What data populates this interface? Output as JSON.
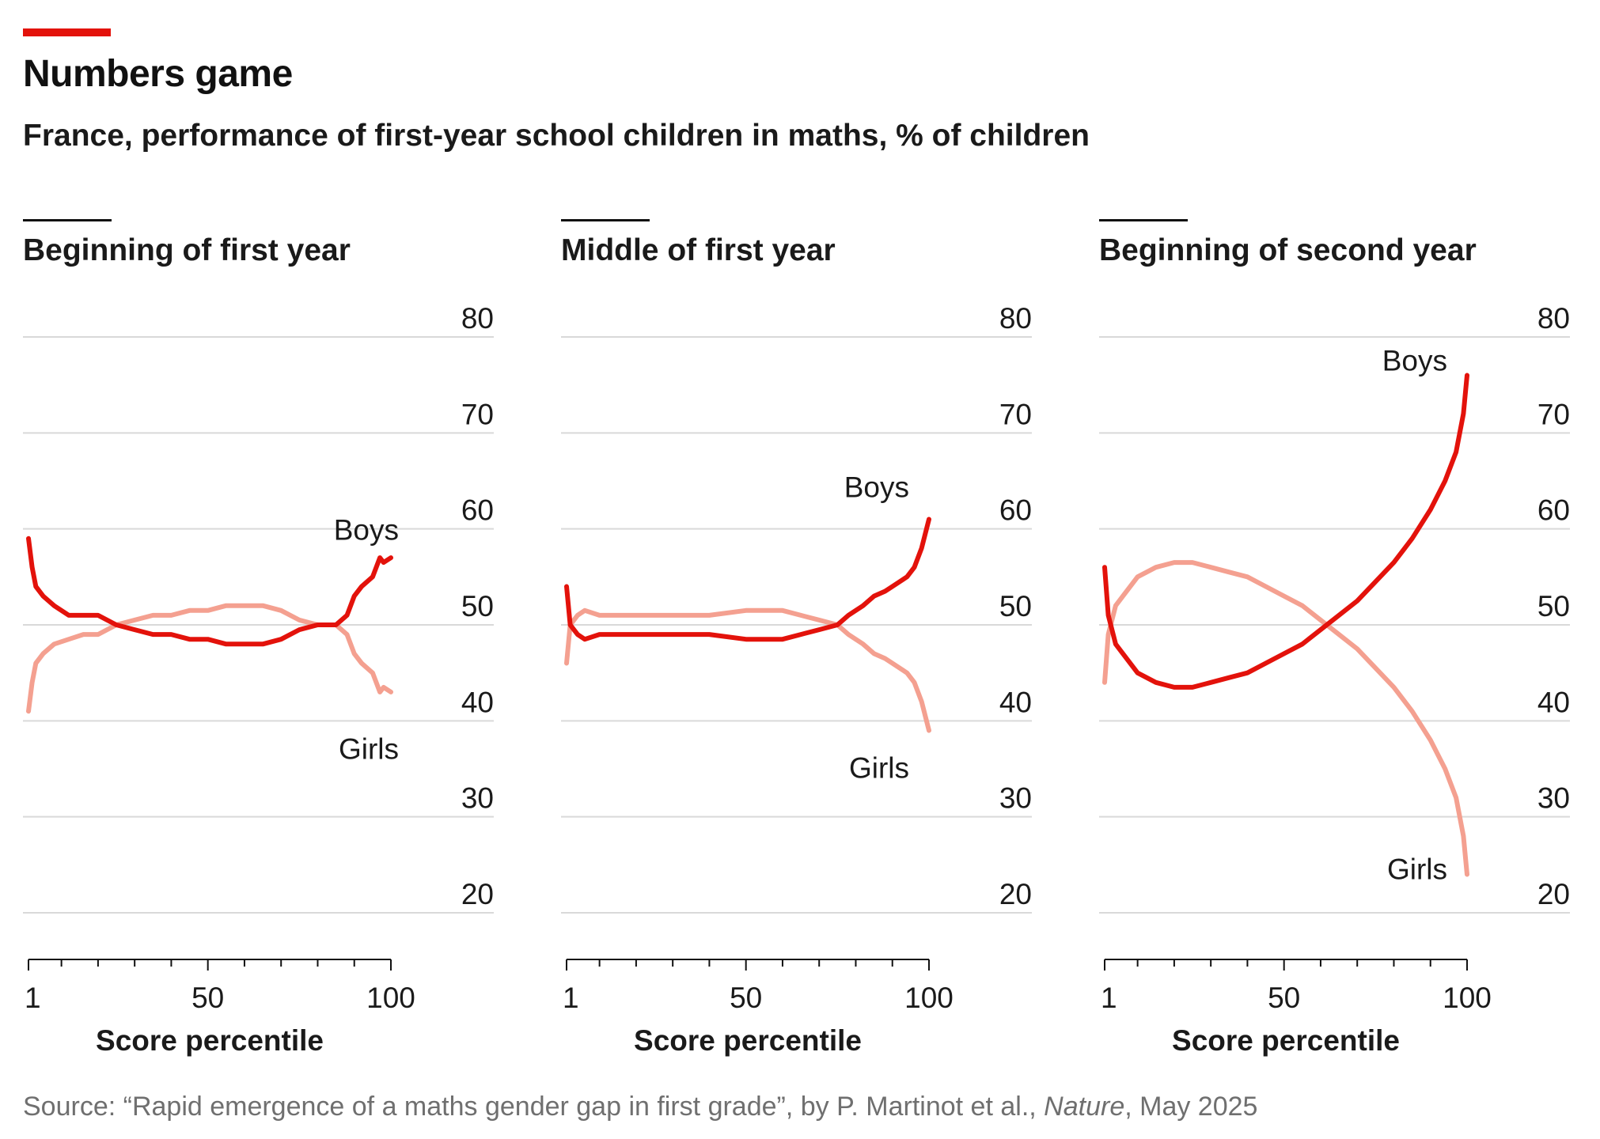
{
  "title": "Numbers game",
  "subtitle": "France, performance of first-year school children in maths, % of children",
  "source": {
    "prefix": "Source: “Rapid emergence of a maths gender gap in first grade”, by P. Martinot et al., ",
    "journal": "Nature",
    "suffix": ", May 2025"
  },
  "colors": {
    "accent": "#e3120b",
    "boys": "#e3120b",
    "girls": "#f4a090",
    "grid": "#d9d9d9"
  },
  "chart_data": [
    {
      "type": "line",
      "title": "Beginning of first year",
      "xlabel": "Score percentile",
      "xlim": [
        1,
        100
      ],
      "xticks": [
        1,
        50,
        100
      ],
      "ylim": [
        20,
        80
      ],
      "yticks": [
        20,
        30,
        40,
        50,
        60,
        70,
        80
      ],
      "series": [
        {
          "name": "Boys",
          "x": [
            1,
            2,
            3,
            5,
            8,
            12,
            16,
            20,
            25,
            30,
            35,
            40,
            45,
            50,
            55,
            60,
            65,
            70,
            75,
            80,
            85,
            88,
            90,
            92,
            95,
            97,
            98,
            100
          ],
          "values": [
            59,
            56,
            54,
            53,
            52,
            51,
            51,
            51,
            50,
            49.5,
            49,
            49,
            48.5,
            48.5,
            48,
            48,
            48,
            48.5,
            49.5,
            50,
            50,
            51,
            53,
            54,
            55,
            57,
            56.5,
            57
          ]
        },
        {
          "name": "Girls",
          "x": [
            1,
            2,
            3,
            5,
            8,
            12,
            16,
            20,
            25,
            30,
            35,
            40,
            45,
            50,
            55,
            60,
            65,
            70,
            75,
            80,
            85,
            88,
            90,
            92,
            95,
            97,
            98,
            100
          ],
          "values": [
            41,
            44,
            46,
            47,
            48,
            48.5,
            49,
            49,
            50,
            50.5,
            51,
            51,
            51.5,
            51.5,
            52,
            52,
            52,
            51.5,
            50.5,
            50,
            50,
            49,
            47,
            46,
            45,
            43,
            43.5,
            43
          ]
        }
      ]
    },
    {
      "type": "line",
      "title": "Middle of first year",
      "xlabel": "Score percentile",
      "xlim": [
        1,
        100
      ],
      "xticks": [
        1,
        50,
        100
      ],
      "ylim": [
        20,
        80
      ],
      "yticks": [
        20,
        30,
        40,
        50,
        60,
        70,
        80
      ],
      "series": [
        {
          "name": "Boys",
          "x": [
            1,
            2,
            4,
            6,
            10,
            20,
            30,
            40,
            50,
            60,
            65,
            70,
            75,
            78,
            80,
            82,
            85,
            88,
            90,
            92,
            94,
            96,
            98,
            100
          ],
          "values": [
            54,
            50,
            49,
            48.5,
            49,
            49,
            49,
            49,
            48.5,
            48.5,
            49,
            49.5,
            50,
            51,
            51.5,
            52,
            53,
            53.5,
            54,
            54.5,
            55,
            56,
            58,
            61
          ]
        },
        {
          "name": "Girls",
          "x": [
            1,
            2,
            4,
            6,
            10,
            20,
            30,
            40,
            50,
            60,
            65,
            70,
            75,
            78,
            80,
            82,
            85,
            88,
            90,
            92,
            94,
            96,
            98,
            100
          ],
          "values": [
            46,
            50,
            51,
            51.5,
            51,
            51,
            51,
            51,
            51.5,
            51.5,
            51,
            50.5,
            50,
            49,
            48.5,
            48,
            47,
            46.5,
            46,
            45.5,
            45,
            44,
            42,
            39
          ]
        }
      ]
    },
    {
      "type": "line",
      "title": "Beginning of second year",
      "xlabel": "Score percentile",
      "xlim": [
        1,
        100
      ],
      "xticks": [
        1,
        50,
        100
      ],
      "ylim": [
        20,
        80
      ],
      "yticks": [
        20,
        30,
        40,
        50,
        60,
        70,
        80
      ],
      "series": [
        {
          "name": "Boys",
          "x": [
            1,
            2,
            4,
            6,
            10,
            15,
            20,
            25,
            30,
            35,
            40,
            45,
            50,
            55,
            60,
            65,
            70,
            75,
            80,
            85,
            90,
            94,
            97,
            99,
            100
          ],
          "values": [
            56,
            51,
            48,
            47,
            45,
            44,
            43.5,
            43.5,
            44,
            44.5,
            45,
            46,
            47,
            48,
            49.5,
            51,
            52.5,
            54.5,
            56.5,
            59,
            62,
            65,
            68,
            72,
            76
          ]
        },
        {
          "name": "Girls",
          "x": [
            1,
            2,
            4,
            6,
            10,
            15,
            20,
            25,
            30,
            35,
            40,
            45,
            50,
            55,
            60,
            65,
            70,
            75,
            80,
            85,
            90,
            94,
            97,
            99,
            100
          ],
          "values": [
            44,
            49,
            52,
            53,
            55,
            56,
            56.5,
            56.5,
            56,
            55.5,
            55,
            54,
            53,
            52,
            50.5,
            49,
            47.5,
            45.5,
            43.5,
            41,
            38,
            35,
            32,
            28,
            24
          ]
        }
      ]
    }
  ]
}
